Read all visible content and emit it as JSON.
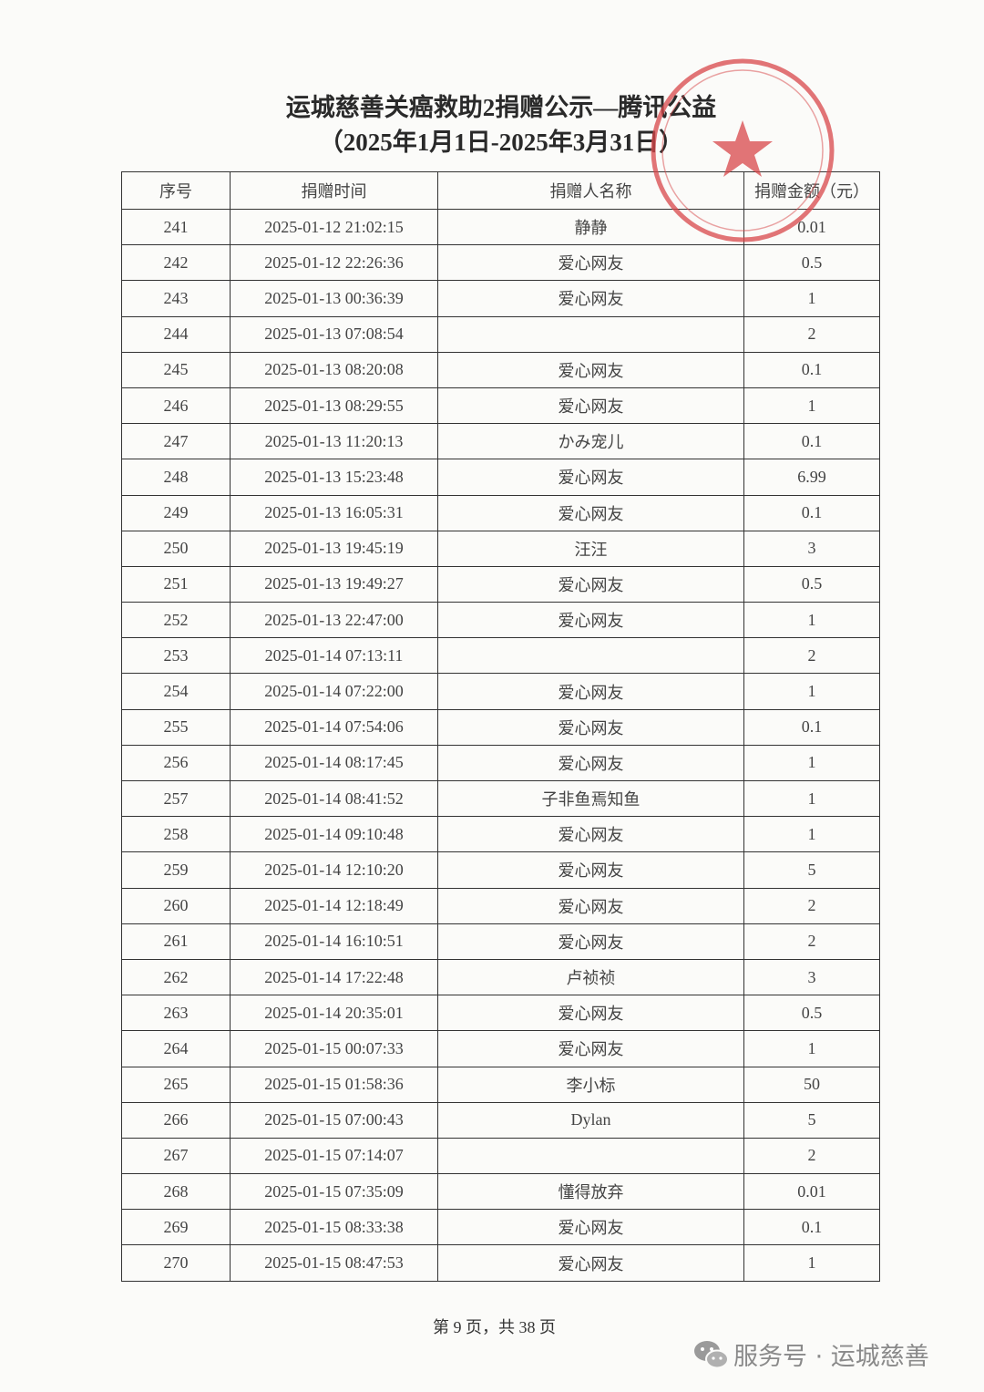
{
  "header": {
    "title": "运城慈善关癌救助2捐赠公示—腾讯公益",
    "subtitle": "（2025年1月1日-2025年3月31日）"
  },
  "table": {
    "columns": [
      "序号",
      "捐赠时间",
      "捐赠人名称",
      "捐赠金额（元）"
    ],
    "rows": [
      [
        "241",
        "2025-01-12 21:02:15",
        "静静",
        "0.01"
      ],
      [
        "242",
        "2025-01-12 22:26:36",
        "爱心网友",
        "0.5"
      ],
      [
        "243",
        "2025-01-13 00:36:39",
        "爱心网友",
        "1"
      ],
      [
        "244",
        "2025-01-13 07:08:54",
        null,
        "2"
      ],
      [
        "245",
        "2025-01-13 08:20:08",
        "爱心网友",
        "0.1"
      ],
      [
        "246",
        "2025-01-13 08:29:55",
        "爱心网友",
        "1"
      ],
      [
        "247",
        "2025-01-13 11:20:13",
        "かみ宠儿",
        "0.1"
      ],
      [
        "248",
        "2025-01-13 15:23:48",
        "爱心网友",
        "6.99"
      ],
      [
        "249",
        "2025-01-13 16:05:31",
        "爱心网友",
        "0.1"
      ],
      [
        "250",
        "2025-01-13 19:45:19",
        "汪汪",
        "3"
      ],
      [
        "251",
        "2025-01-13 19:49:27",
        "爱心网友",
        "0.5"
      ],
      [
        "252",
        "2025-01-13 22:47:00",
        "爱心网友",
        "1"
      ],
      [
        "253",
        "2025-01-14 07:13:11",
        null,
        "2"
      ],
      [
        "254",
        "2025-01-14 07:22:00",
        "爱心网友",
        "1"
      ],
      [
        "255",
        "2025-01-14 07:54:06",
        "爱心网友",
        "0.1"
      ],
      [
        "256",
        "2025-01-14 08:17:45",
        "爱心网友",
        "1"
      ],
      [
        "257",
        "2025-01-14 08:41:52",
        "子非鱼焉知鱼",
        "1"
      ],
      [
        "258",
        "2025-01-14 09:10:48",
        "爱心网友",
        "1"
      ],
      [
        "259",
        "2025-01-14 12:10:20",
        "爱心网友",
        "5"
      ],
      [
        "260",
        "2025-01-14 12:18:49",
        "爱心网友",
        "2"
      ],
      [
        "261",
        "2025-01-14 16:10:51",
        "爱心网友",
        "2"
      ],
      [
        "262",
        "2025-01-14 17:22:48",
        "卢祯祯",
        "3"
      ],
      [
        "263",
        "2025-01-14 20:35:01",
        "爱心网友",
        "0.5"
      ],
      [
        "264",
        "2025-01-15 00:07:33",
        "爱心网友",
        "1"
      ],
      [
        "265",
        "2025-01-15 01:58:36",
        "李小标",
        "50"
      ],
      [
        "266",
        "2025-01-15 07:00:43",
        "Dylan",
        "5"
      ],
      [
        "267",
        "2025-01-15 07:14:07",
        null,
        "2"
      ],
      [
        "268",
        "2025-01-15 07:35:09",
        "懂得放弃",
        "0.01"
      ],
      [
        "269",
        "2025-01-15 08:33:38",
        "爱心网友",
        "0.1"
      ],
      [
        "270",
        "2025-01-15 08:47:53",
        "爱心网友",
        "1"
      ]
    ]
  },
  "footer": {
    "page": "第 9 页，共 38 页"
  },
  "watermark": {
    "text": "服务号 · 运城慈善"
  }
}
